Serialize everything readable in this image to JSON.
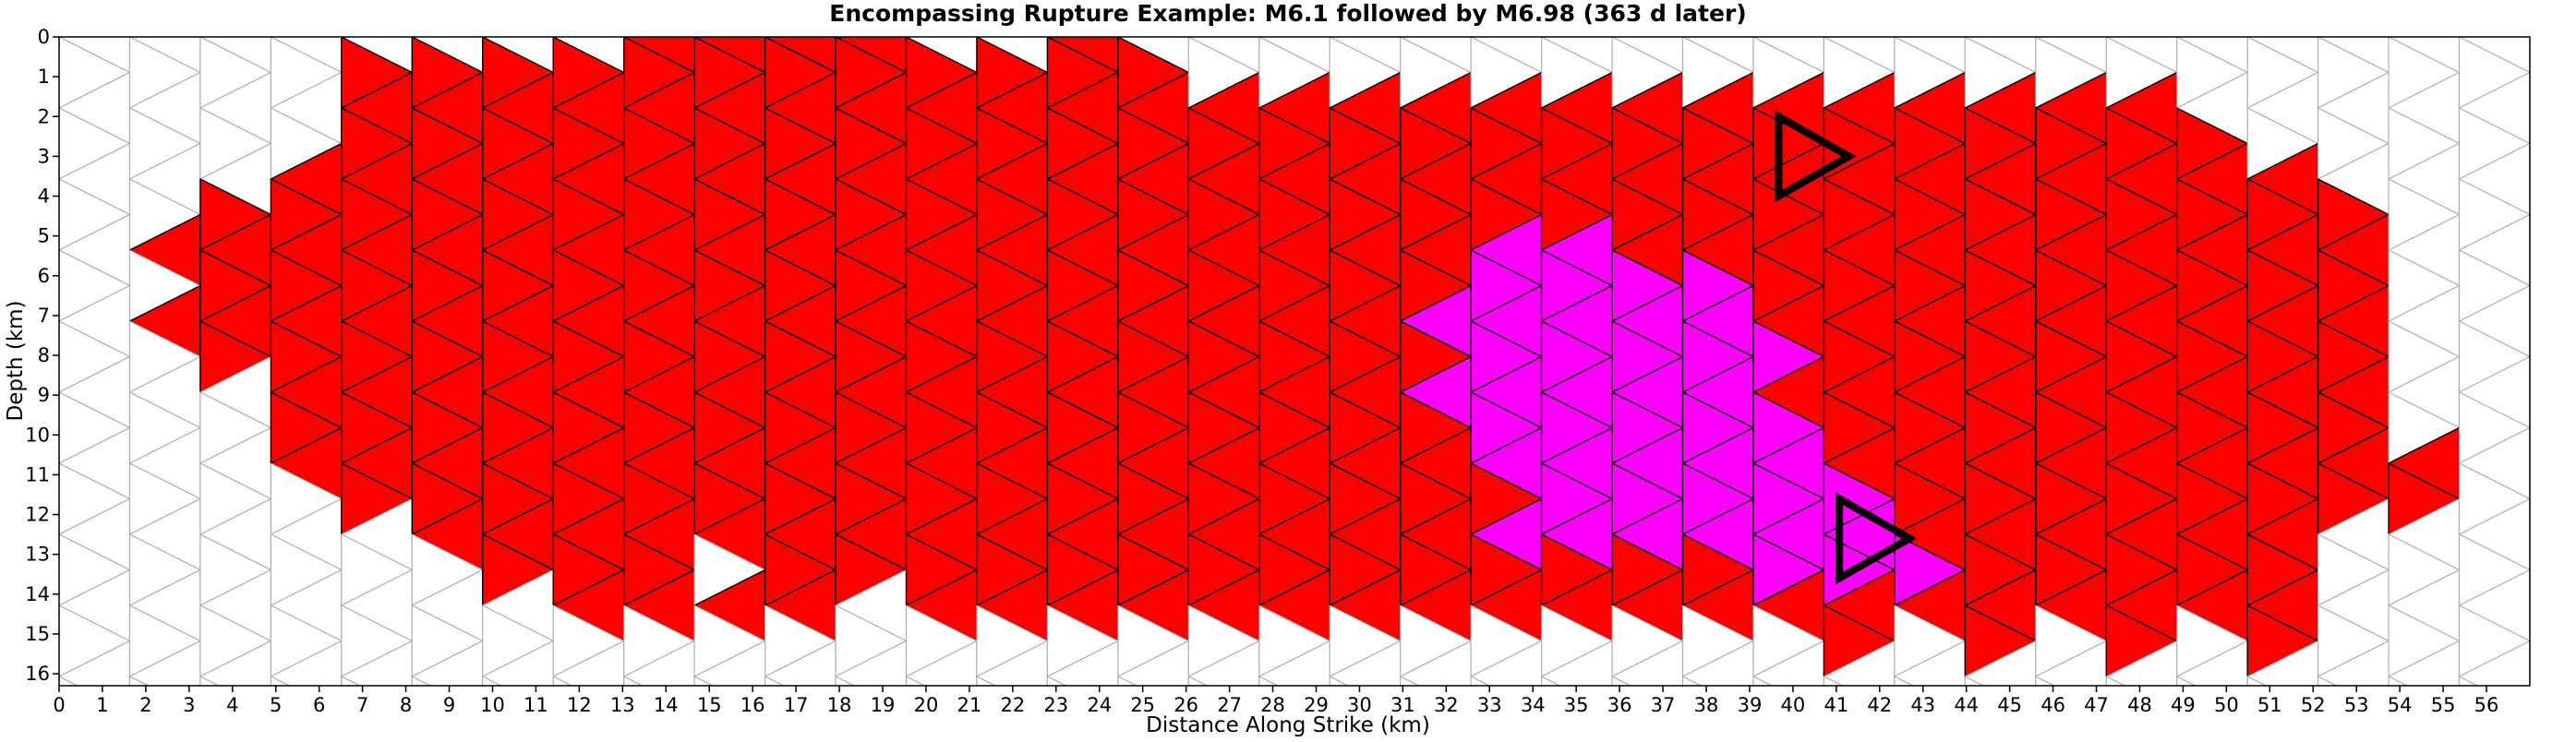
{
  "chart_data": {
    "type": "heatmap",
    "title": "Encompassing Rupture Example: M6.1 followed by M6.98 (363 d later)",
    "xlabel": "Distance Along Strike (km)",
    "ylabel": "Depth (km)",
    "xlim": [
      0,
      57
    ],
    "ylim": [
      16.3,
      0
    ],
    "xticks": [
      0,
      1,
      2,
      3,
      4,
      5,
      6,
      7,
      8,
      9,
      10,
      11,
      12,
      13,
      14,
      15,
      16,
      17,
      18,
      19,
      20,
      21,
      22,
      23,
      24,
      25,
      26,
      27,
      28,
      29,
      30,
      31,
      32,
      33,
      34,
      35,
      36,
      37,
      38,
      39,
      40,
      41,
      42,
      43,
      44,
      45,
      46,
      47,
      48,
      49,
      50,
      51,
      52,
      53,
      54,
      55,
      56
    ],
    "yticks": [
      0,
      1,
      2,
      3,
      4,
      5,
      6,
      7,
      8,
      9,
      10,
      11,
      12,
      13,
      14,
      15,
      16
    ],
    "mesh": {
      "element": "triangle",
      "columns": 35,
      "rows": 18,
      "grid_color": "#b0b0b0"
    },
    "colors": {
      "first_event": "#ff0000",
      "second_event": "#ff00ff",
      "unruptured": "#ffffff",
      "edge": "#000000",
      "marker": "#000000"
    },
    "series": [
      {
        "name": "M6.1",
        "color": "#ff0000"
      },
      {
        "name": "M6.98",
        "color": "#ff00ff"
      }
    ],
    "hypocenter_markers": [
      {
        "x": 40.4,
        "y": 3.0
      },
      {
        "x": 41.8,
        "y": 12.6
      }
    ]
  }
}
